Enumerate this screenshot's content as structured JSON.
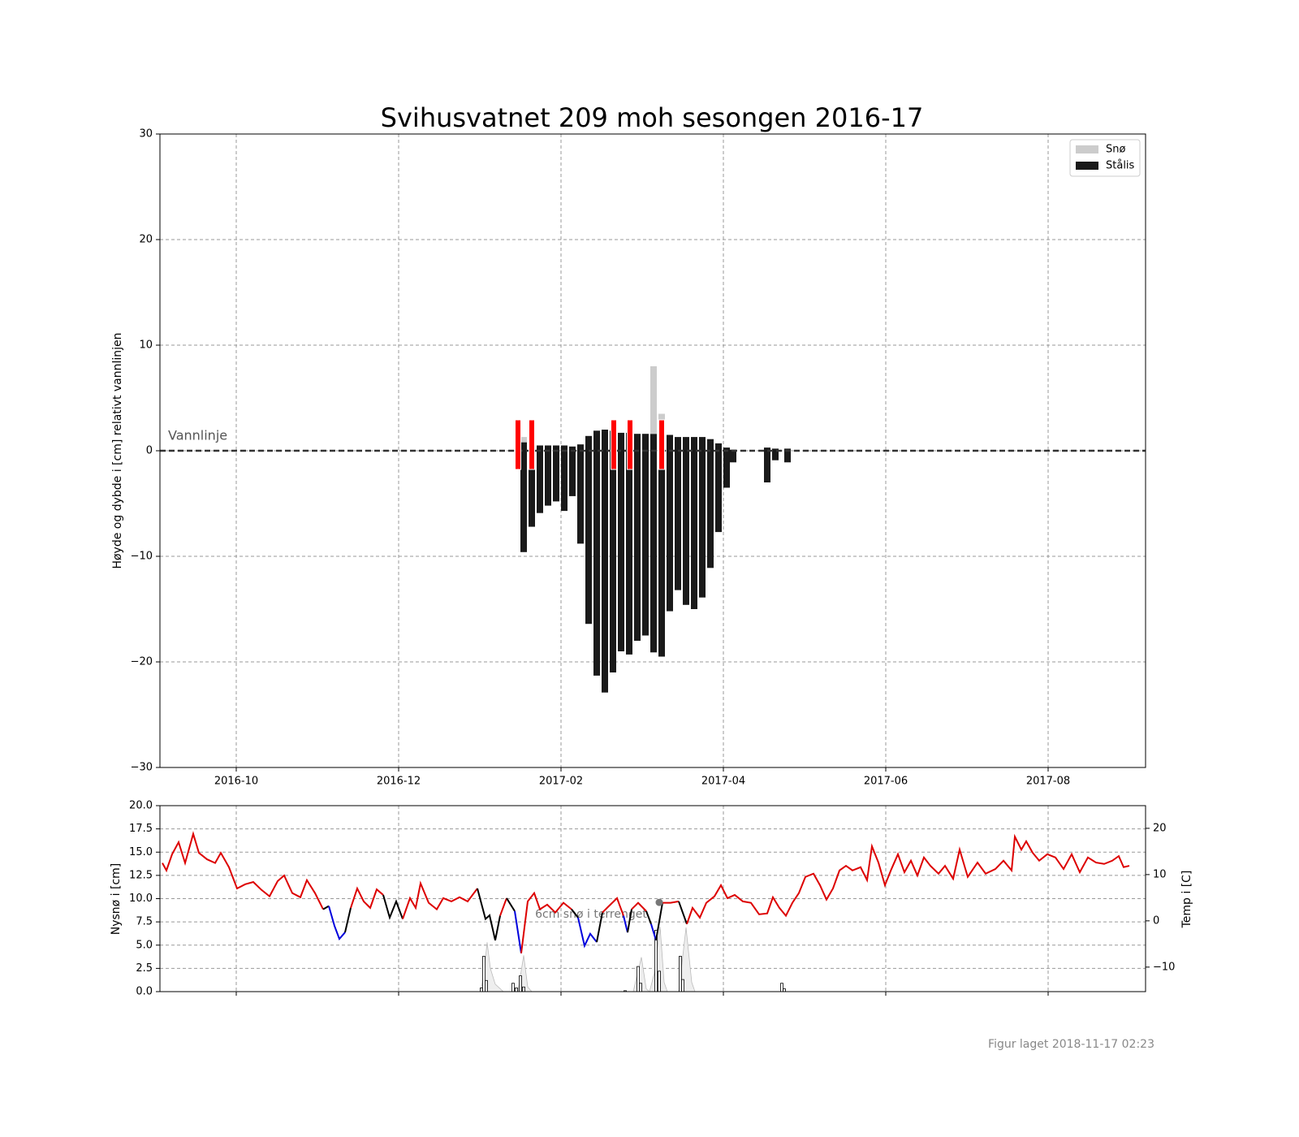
{
  "chart_data": [
    {
      "type": "bar",
      "title": "Svihusvatnet 209 moh  sesongen 2016-17",
      "ylabel": "Høyde og dybde i [cm] relativt vannlinjen",
      "xlim": [
        0.06,
        12.2
      ],
      "xticks": [
        {
          "value": 1,
          "label": "2016-10"
        },
        {
          "value": 3,
          "label": "2016-12"
        },
        {
          "value": 5,
          "label": "2017-02"
        },
        {
          "value": 7,
          "label": "2017-04"
        },
        {
          "value": 9,
          "label": "2017-06"
        },
        {
          "value": 11,
          "label": "2017-08"
        }
      ],
      "ylim": [
        -30,
        30
      ],
      "yticks": [
        {
          "value": -30,
          "label": "−30"
        },
        {
          "value": -20,
          "label": "−20"
        },
        {
          "value": -10,
          "label": "−10"
        },
        0,
        10,
        20,
        30
      ],
      "grid": true,
      "legend": "upper right",
      "waterline": {
        "value": 0,
        "label": "Vannlinje"
      },
      "observations": {
        "color": "#ff0000",
        "x": [
          4.47,
          4.64,
          5.65,
          5.85,
          6.24
        ]
      },
      "x": [
        4.54,
        4.64,
        4.74,
        4.84,
        4.94,
        5.04,
        5.14,
        5.24,
        5.34,
        5.44,
        5.54,
        5.64,
        5.74,
        5.84,
        5.94,
        6.04,
        6.14,
        6.24,
        6.34,
        6.44,
        6.54,
        6.64,
        6.74,
        6.84,
        6.94,
        7.04,
        7.12,
        7.54,
        7.64,
        7.79
      ],
      "series": [
        {
          "name": "Snø",
          "color": "#cccccc",
          "values": [
            1.3,
            null,
            null,
            null,
            null,
            null,
            null,
            null,
            null,
            null,
            null,
            null,
            null,
            null,
            null,
            null,
            8.0,
            3.5,
            null,
            null,
            null,
            null,
            null,
            null,
            null,
            null,
            null,
            null,
            null,
            null
          ]
        },
        {
          "name": "Stålis",
          "color": "#1a1a1a",
          "high": [
            0.8,
            0.6,
            0.5,
            0.5,
            0.5,
            0.5,
            0.4,
            0.6,
            1.4,
            1.9,
            2.0,
            1.9,
            1.7,
            1.7,
            1.6,
            1.6,
            1.6,
            1.6,
            1.5,
            1.3,
            1.3,
            1.3,
            1.3,
            1.1,
            0.7,
            0.3,
            0.1,
            0.3,
            0.2,
            0.2
          ],
          "low": [
            -9.6,
            -7.2,
            -5.9,
            -5.2,
            -4.8,
            -5.7,
            -4.3,
            -8.8,
            -16.4,
            -21.3,
            -22.9,
            -21.0,
            -19.0,
            -19.3,
            -18.0,
            -17.5,
            -19.1,
            -19.5,
            -15.2,
            -13.2,
            -14.6,
            -15.0,
            -13.9,
            -11.1,
            -7.7,
            -3.5,
            -1.1,
            -3.0,
            -0.9,
            -1.1
          ]
        }
      ]
    },
    {
      "type": "line",
      "ylabel": "Nysnø i [cm]",
      "y2label": "Temp i [C]",
      "annotation": "6cm snø i terrenget",
      "xlim": [
        0.06,
        12.2
      ],
      "xticks": [
        1,
        3,
        5,
        7,
        9,
        11
      ],
      "ylim": [
        0,
        20
      ],
      "yticks": [
        {
          "value": 0,
          "label": "0.0"
        },
        2.5,
        {
          "value": 5,
          "label": "5.0"
        },
        7.5,
        {
          "value": 10,
          "label": "10.0"
        },
        12.5,
        {
          "value": 15,
          "label": "15.0"
        },
        17.5,
        {
          "value": 20,
          "label": "20.0"
        }
      ],
      "y2lim": [
        -15.3,
        24.9
      ],
      "y2ticks": [
        {
          "value": -10,
          "label": "−10"
        },
        0,
        10,
        20
      ],
      "grid": true,
      "series": [
        {
          "type": "area",
          "color": "#eeeeee",
          "edgecolor": "#bbbbbb",
          "x": [
            4.01,
            4.05,
            4.09,
            4.13,
            4.19,
            4.29,
            4.47,
            4.54,
            4.59,
            4.64,
            5.89,
            5.99,
            6.05,
            6.09,
            6.15,
            6.22,
            6.27,
            6.31,
            6.45,
            6.54,
            6.61,
            6.65
          ],
          "values": [
            0,
            2,
            5.3,
            2.5,
            0.8,
            0,
            0,
            3.9,
            0.5,
            0,
            0,
            3.7,
            0.3,
            0,
            2,
            7.0,
            1,
            0,
            0,
            6.9,
            1,
            0
          ]
        },
        {
          "type": "bar",
          "color": "#ffffff",
          "edgecolor": "#000000",
          "x": [
            4.02,
            4.05,
            4.08,
            4.41,
            4.45,
            4.5,
            4.54,
            5.79,
            5.95,
            5.98,
            6.17,
            6.21,
            6.47,
            6.5,
            7.72,
            7.75
          ],
          "values": [
            0.4,
            3.8,
            1.2,
            0.9,
            0.4,
            1.7,
            0.5,
            0.1,
            2.7,
            0.9,
            6.6,
            2.2,
            3.8,
            1.3,
            0.9,
            0.3
          ]
        },
        {
          "type": "line",
          "axis": "y2",
          "x": [
            0.09,
            0.14,
            0.21,
            0.29,
            0.37,
            0.47,
            0.54,
            0.64,
            0.74,
            0.81,
            0.91,
            1.01,
            1.11,
            1.21,
            1.31,
            1.41,
            1.51,
            1.59,
            1.69,
            1.79,
            1.87,
            1.97,
            2.07,
            2.14,
            2.21,
            2.27,
            2.34,
            2.41,
            2.49,
            2.57,
            2.65,
            2.73,
            2.81,
            2.89,
            2.97,
            3.05,
            3.14,
            3.21,
            3.27,
            3.37,
            3.47,
            3.55,
            3.65,
            3.75,
            3.85,
            3.97,
            4.07,
            4.12,
            4.19,
            4.25,
            4.33,
            4.43,
            4.51,
            4.59,
            4.67,
            4.74,
            4.83,
            4.93,
            5.03,
            5.13,
            5.21,
            5.29,
            5.36,
            5.44,
            5.51,
            5.59,
            5.69,
            5.77,
            5.82,
            5.87,
            5.95,
            6.05,
            6.11,
            6.17,
            6.25,
            6.35,
            6.45,
            6.55,
            6.62,
            6.71,
            6.79,
            6.89,
            6.97,
            7.05,
            7.14,
            7.24,
            7.34,
            7.44,
            7.54,
            7.61,
            7.69,
            7.77,
            7.85,
            7.93,
            8.01,
            8.11,
            8.19,
            8.27,
            8.35,
            8.43,
            8.51,
            8.59,
            8.69,
            8.77,
            8.83,
            8.91,
            8.99,
            9.07,
            9.15,
            9.23,
            9.31,
            9.39,
            9.47,
            9.55,
            9.65,
            9.73,
            9.83,
            9.91,
            10.01,
            10.13,
            10.23,
            10.35,
            10.45,
            10.55,
            10.59,
            10.67,
            10.73,
            10.81,
            10.89,
            10.99,
            11.09,
            11.19,
            11.29,
            11.39,
            11.49,
            11.59,
            11.69,
            11.79,
            11.87,
            11.93,
            12.0
          ],
          "values": [
            12.5,
            10.9,
            14.4,
            17.0,
            12.5,
            18.8,
            14.7,
            13.3,
            12.5,
            14.7,
            11.6,
            7.0,
            7.9,
            8.4,
            6.7,
            5.3,
            8.6,
            9.8,
            6.0,
            5.1,
            8.8,
            6.0,
            2.5,
            3.2,
            -1.1,
            -3.9,
            -2.5,
            2.8,
            7.0,
            4.2,
            2.8,
            6.8,
            5.6,
            0.7,
            4.2,
            0.4,
            4.9,
            2.8,
            8.1,
            3.9,
            2.5,
            4.9,
            4.2,
            5.1,
            4.2,
            7.0,
            0.4,
            1.2,
            -4.2,
            1.1,
            4.9,
            2.1,
            -7.0,
            4.2,
            6.0,
            2.5,
            3.5,
            1.8,
            3.9,
            2.5,
            0.7,
            -5.4,
            -2.8,
            -4.6,
            1.8,
            3.2,
            4.9,
            1.1,
            -2.5,
            2.5,
            3.9,
            2.1,
            -0.7,
            -4.2,
            3.9,
            3.9,
            4.2,
            -0.7,
            2.8,
            0.7,
            3.9,
            5.3,
            7.7,
            4.9,
            5.6,
            4.2,
            3.9,
            1.4,
            1.6,
            5.1,
            2.8,
            1.1,
            3.9,
            6.0,
            9.5,
            10.2,
            7.7,
            4.6,
            7.0,
            10.9,
            11.9,
            10.9,
            11.6,
            8.8,
            16.1,
            12.6,
            7.7,
            11.2,
            14.4,
            10.5,
            13.0,
            9.8,
            13.7,
            11.9,
            10.2,
            11.9,
            9.1,
            15.4,
            9.5,
            12.6,
            10.2,
            11.2,
            13.0,
            10.9,
            18.2,
            15.4,
            17.2,
            14.7,
            13.0,
            14.4,
            13.7,
            11.2,
            14.4,
            10.5,
            13.7,
            12.6,
            12.3,
            13.0,
            14.0,
            11.6,
            11.9
          ],
          "colors": [
            "#dd0000",
            "#dd0000",
            "#dd0000",
            "#dd0000",
            "#dd0000",
            "#dd0000",
            "#dd0000",
            "#dd0000",
            "#dd0000",
            "#dd0000",
            "#dd0000",
            "#dd0000",
            "#dd0000",
            "#dd0000",
            "#dd0000",
            "#dd0000",
            "#dd0000",
            "#dd0000",
            "#dd0000",
            "#dd0000",
            "#dd0000",
            "#dd0000",
            "#dd0000",
            "#000000",
            "#0000dd",
            "#0000dd",
            "#0000dd",
            "#000000",
            "#dd0000",
            "#dd0000",
            "#dd0000",
            "#dd0000",
            "#dd0000",
            "#000000",
            "#000000",
            "#000000",
            "#dd0000",
            "#dd0000",
            "#dd0000",
            "#dd0000",
            "#dd0000",
            "#dd0000",
            "#dd0000",
            "#dd0000",
            "#dd0000",
            "#dd0000",
            "#000000",
            "#000000",
            "#000000",
            "#000000",
            "#dd0000",
            "#000000",
            "#0000dd",
            "#dd0000",
            "#dd0000",
            "#dd0000",
            "#dd0000",
            "#dd0000",
            "#dd0000",
            "#dd0000",
            "#000000",
            "#0000dd",
            "#0000dd",
            "#0000dd",
            "#000000",
            "#dd0000",
            "#dd0000",
            "#dd0000",
            "#0000dd",
            "#000000",
            "#dd0000",
            "#dd0000",
            "#000000",
            "#0000dd",
            "#000000",
            "#dd0000",
            "#dd0000",
            "#000000",
            "#dd0000",
            "#dd0000",
            "#dd0000",
            "#dd0000",
            "#dd0000",
            "#dd0000",
            "#dd0000",
            "#dd0000",
            "#dd0000",
            "#dd0000",
            "#dd0000",
            "#dd0000",
            "#dd0000",
            "#dd0000",
            "#dd0000",
            "#dd0000",
            "#dd0000",
            "#dd0000",
            "#dd0000",
            "#dd0000",
            "#dd0000",
            "#dd0000",
            "#dd0000",
            "#dd0000",
            "#dd0000",
            "#dd0000",
            "#dd0000",
            "#dd0000",
            "#dd0000",
            "#dd0000",
            "#dd0000",
            "#dd0000",
            "#dd0000",
            "#dd0000",
            "#dd0000",
            "#dd0000",
            "#dd0000",
            "#dd0000",
            "#dd0000",
            "#dd0000",
            "#dd0000",
            "#dd0000",
            "#dd0000",
            "#dd0000",
            "#dd0000",
            "#dd0000",
            "#dd0000",
            "#dd0000",
            "#dd0000",
            "#dd0000",
            "#dd0000",
            "#dd0000",
            "#dd0000",
            "#dd0000",
            "#dd0000",
            "#dd0000",
            "#dd0000",
            "#dd0000",
            "#dd0000",
            "#dd0000",
            "#dd0000",
            "#dd0000",
            "#dd0000"
          ]
        },
        {
          "type": "scatter",
          "color": "#777777",
          "x": [
            6.21
          ],
          "values": [
            9.6
          ]
        }
      ]
    }
  ],
  "footer": "Figur laget 2018-11-17 02:23"
}
